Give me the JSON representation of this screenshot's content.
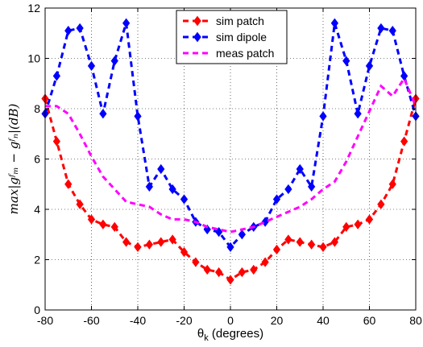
{
  "chart_data": {
    "type": "line",
    "xlabel": "θ",
    "xlabel_sub": "k",
    "xlabel_suffix": " (degrees)",
    "ylabel": "max|gᶠₘ − gᶠₙ|(dB)",
    "xlim": [
      -80,
      80
    ],
    "ylim": [
      0,
      12
    ],
    "xticks": [
      -80,
      -60,
      -40,
      -20,
      0,
      20,
      40,
      60,
      80
    ],
    "yticks": [
      0,
      2,
      4,
      6,
      8,
      10,
      12
    ],
    "grid": true,
    "legend_position": "top-center",
    "series": [
      {
        "name": "sim patch",
        "color": "#ff0000",
        "marker": "diamond",
        "x": [
          -80,
          -75,
          -70,
          -65,
          -60,
          -55,
          -50,
          -45,
          -40,
          -35,
          -30,
          -25,
          -20,
          -15,
          -10,
          -5,
          0,
          5,
          10,
          15,
          20,
          25,
          30,
          35,
          40,
          45,
          50,
          55,
          60,
          65,
          70,
          75,
          80
        ],
        "values": [
          8.4,
          6.7,
          5.0,
          4.2,
          3.6,
          3.4,
          3.3,
          2.7,
          2.5,
          2.6,
          2.7,
          2.8,
          2.3,
          1.9,
          1.6,
          1.5,
          1.2,
          1.5,
          1.6,
          1.9,
          2.4,
          2.8,
          2.7,
          2.6,
          2.5,
          2.7,
          3.3,
          3.4,
          3.6,
          4.2,
          5.0,
          6.7,
          8.4
        ]
      },
      {
        "name": "sim dipole",
        "color": "#0000ff",
        "marker": "diamond",
        "x": [
          -80,
          -75,
          -70,
          -65,
          -60,
          -55,
          -50,
          -45,
          -40,
          -35,
          -30,
          -25,
          -20,
          -15,
          -10,
          -5,
          0,
          5,
          10,
          15,
          20,
          25,
          30,
          35,
          40,
          45,
          50,
          55,
          60,
          65,
          70,
          75,
          80
        ],
        "values": [
          7.8,
          9.3,
          11.1,
          11.2,
          9.7,
          7.8,
          9.9,
          11.4,
          7.7,
          4.9,
          5.6,
          4.8,
          4.4,
          3.5,
          3.2,
          3.1,
          2.5,
          3.0,
          3.3,
          3.5,
          4.4,
          4.8,
          5.6,
          4.9,
          7.7,
          11.4,
          9.9,
          7.8,
          9.7,
          11.2,
          11.1,
          9.3,
          7.7
        ]
      },
      {
        "name": "meas patch",
        "color": "#ff00ff",
        "marker": "none",
        "x": [
          -80,
          -75,
          -70,
          -65,
          -60,
          -55,
          -50,
          -45,
          -40,
          -35,
          -30,
          -25,
          -20,
          -15,
          -10,
          -5,
          0,
          5,
          10,
          15,
          20,
          25,
          30,
          35,
          40,
          45,
          50,
          55,
          60,
          65,
          70,
          75,
          80
        ],
        "values": [
          8.1,
          8.1,
          7.8,
          7.0,
          6.1,
          5.3,
          4.8,
          4.3,
          4.2,
          4.1,
          3.8,
          3.6,
          3.6,
          3.5,
          3.3,
          3.2,
          3.1,
          3.2,
          3.3,
          3.5,
          3.7,
          3.9,
          4.1,
          4.4,
          4.8,
          5.1,
          5.9,
          6.9,
          7.9,
          8.9,
          8.5,
          9.2,
          8.1
        ]
      }
    ]
  }
}
